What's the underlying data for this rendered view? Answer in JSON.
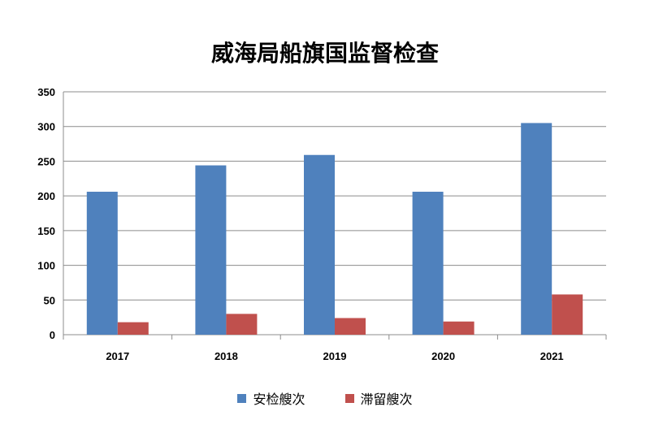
{
  "chart_data": {
    "type": "bar",
    "title": "威海局船旗国监督检查",
    "categories": [
      "2017",
      "2018",
      "2019",
      "2020",
      "2021"
    ],
    "series": [
      {
        "name": "安检艘次",
        "color": "#4F81BD",
        "values": [
          206,
          244,
          259,
          206,
          305
        ]
      },
      {
        "name": "滞留艘次",
        "color": "#C0504D",
        "values": [
          18,
          30,
          24,
          19,
          58
        ]
      }
    ],
    "yticks": [
      0,
      50,
      100,
      150,
      200,
      250,
      300,
      350
    ],
    "ylim": [
      0,
      350
    ],
    "grid": true,
    "legend": "bottom"
  }
}
